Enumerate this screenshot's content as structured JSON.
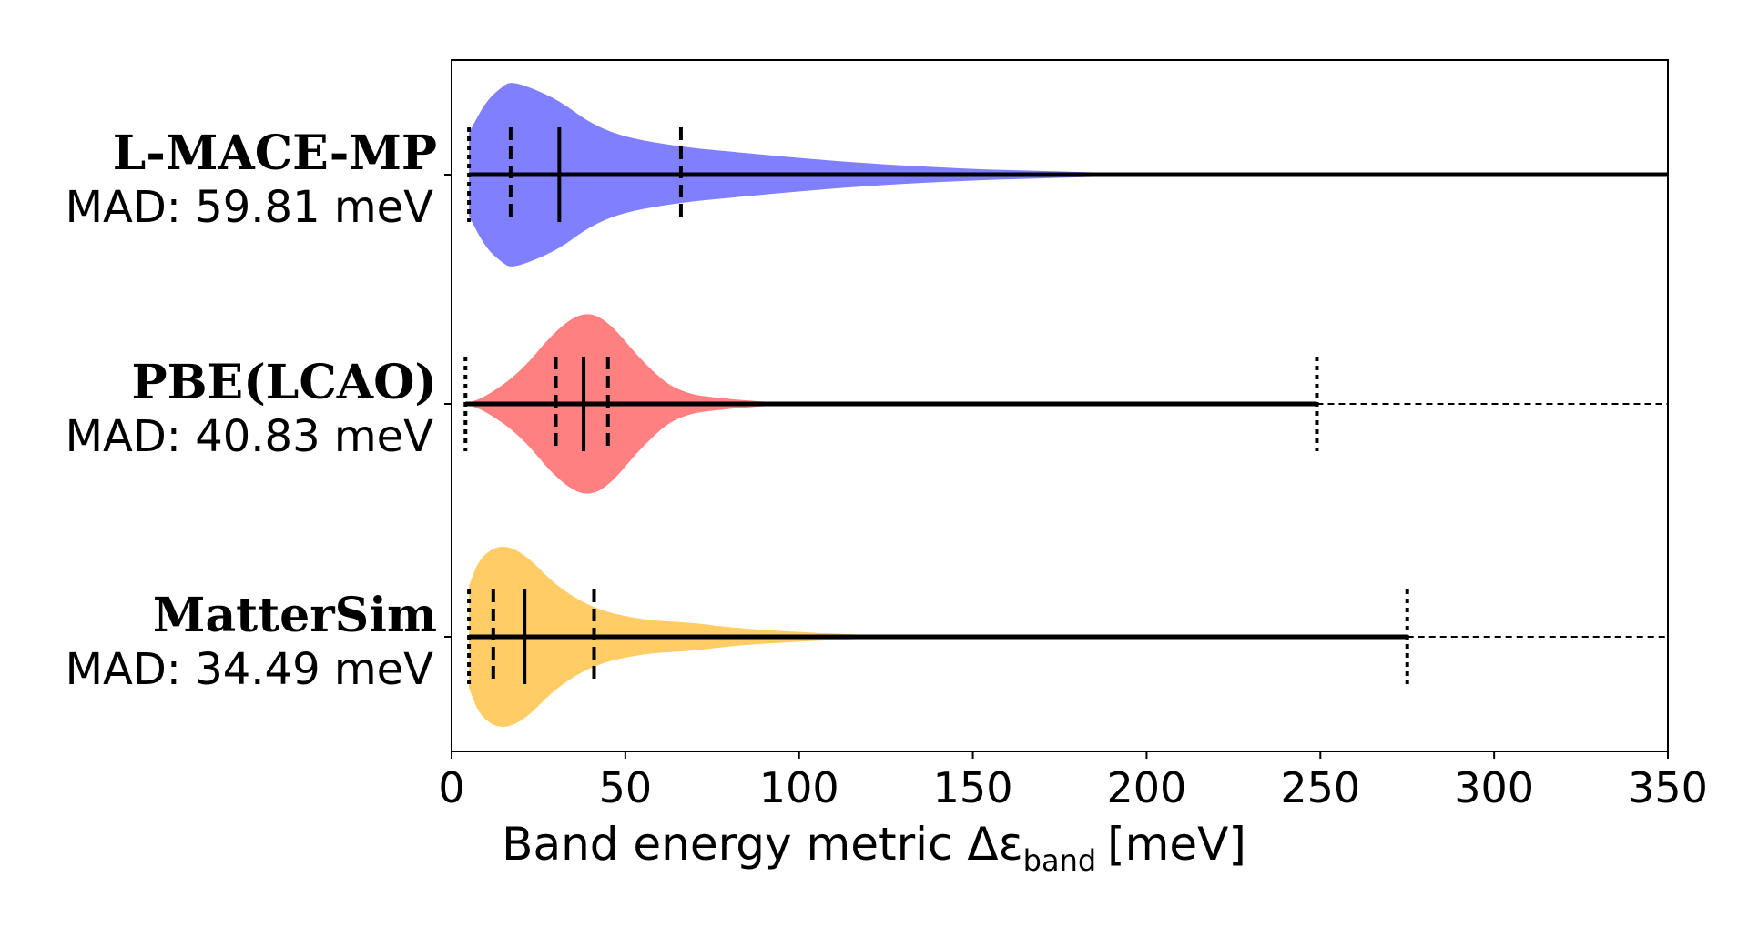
{
  "chart_data": {
    "type": "violin",
    "orientation": "horizontal",
    "xlabel_main": "Band energy metric Δε",
    "xlabel_sub": "band",
    "xlabel_unit": "[meV]",
    "xlim": [
      0,
      350
    ],
    "xticks": [
      0,
      50,
      100,
      150,
      200,
      250,
      300,
      350
    ],
    "series": [
      {
        "name": "L-MACE-MP",
        "mad_label": "MAD: 59.81 meV",
        "color": "#8080ff",
        "min": 5,
        "q_low": 17,
        "median": 31,
        "q_high": 66,
        "whisker_end": 350,
        "max": 350,
        "density": [
          [
            5,
            0.45
          ],
          [
            10,
            0.8
          ],
          [
            15,
            0.96
          ],
          [
            17,
            1.0
          ],
          [
            22,
            0.95
          ],
          [
            31,
            0.8
          ],
          [
            40,
            0.55
          ],
          [
            50,
            0.4
          ],
          [
            66,
            0.3
          ],
          [
            80,
            0.25
          ],
          [
            100,
            0.18
          ],
          [
            120,
            0.12
          ],
          [
            150,
            0.06
          ],
          [
            170,
            0.04
          ],
          [
            190,
            0.02
          ],
          [
            200,
            0.0
          ]
        ]
      },
      {
        "name": "PBE(LCAO)",
        "mad_label": "MAD: 40.83 meV",
        "color": "#ff8080",
        "min": 4,
        "q_low": 30,
        "median": 38,
        "q_high": 45,
        "whisker_end": 249,
        "max": 350,
        "density": [
          [
            4,
            0.0
          ],
          [
            10,
            0.08
          ],
          [
            20,
            0.35
          ],
          [
            30,
            0.8
          ],
          [
            38,
            1.0
          ],
          [
            45,
            0.9
          ],
          [
            55,
            0.45
          ],
          [
            65,
            0.12
          ],
          [
            80,
            0.05
          ],
          [
            100,
            0.0
          ]
        ]
      },
      {
        "name": "MatterSim",
        "mad_label": "MAD: 34.49 meV",
        "color": "#ffcc66",
        "min": 5,
        "q_low": 12,
        "median": 21,
        "q_high": 41,
        "whisker_end": 275,
        "max": 350,
        "density": [
          [
            5,
            0.55
          ],
          [
            8,
            0.85
          ],
          [
            14,
            1.0
          ],
          [
            21,
            0.9
          ],
          [
            30,
            0.55
          ],
          [
            41,
            0.3
          ],
          [
            55,
            0.18
          ],
          [
            70,
            0.15
          ],
          [
            80,
            0.1
          ],
          [
            100,
            0.05
          ],
          [
            120,
            0.02
          ],
          [
            130,
            0.0
          ]
        ]
      }
    ]
  }
}
